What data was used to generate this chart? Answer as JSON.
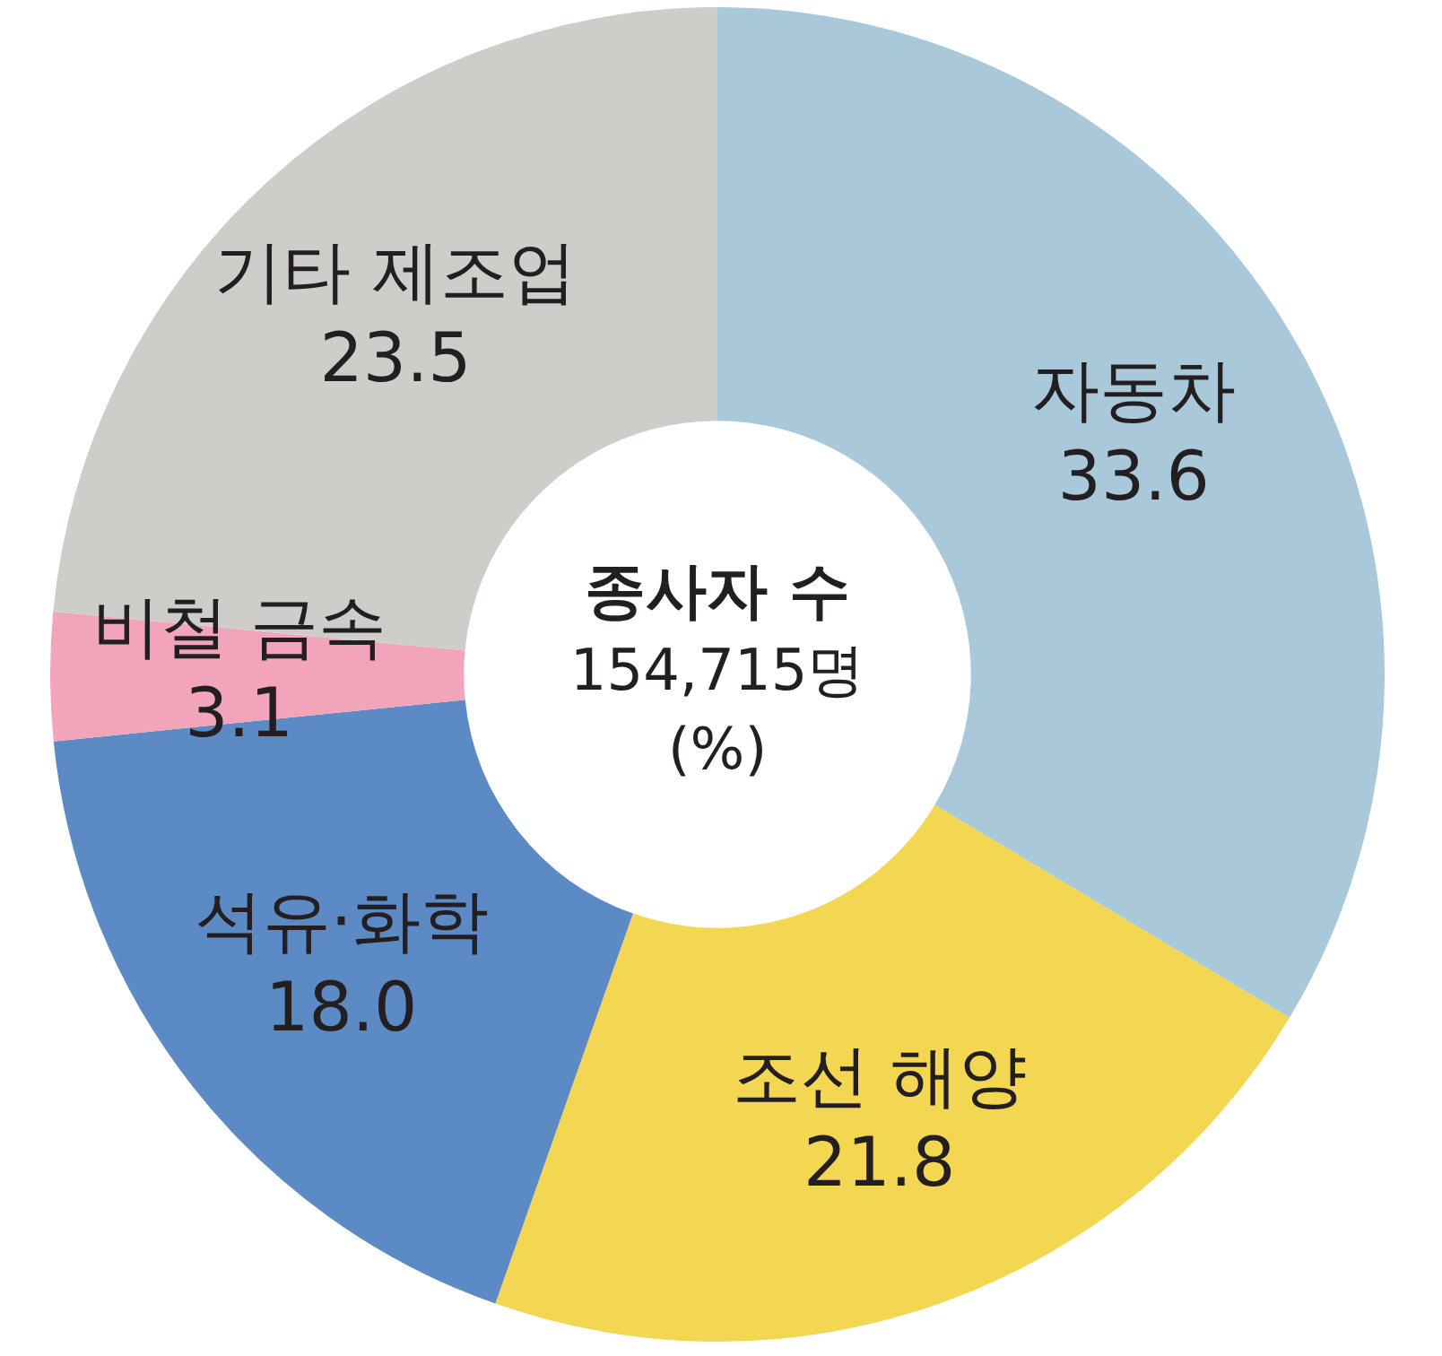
{
  "chart_data": {
    "type": "donut",
    "title": "종사자 수",
    "subtitle": "154,715명",
    "annotations": [
      "(%)"
    ],
    "categories": [
      "자동차",
      "조선 해양",
      "석유·화학",
      "비철 금속",
      "기타 제조업"
    ],
    "values": [
      33.6,
      21.8,
      18.0,
      3.1,
      23.5
    ],
    "value_labels": [
      "33.6",
      "21.8",
      "18.0",
      "3.1",
      "23.5"
    ],
    "colors": [
      "#a9c8da",
      "#f3d651",
      "#5c8ac4",
      "#f2a5ba",
      "#cfcdc9"
    ],
    "legend": false
  }
}
